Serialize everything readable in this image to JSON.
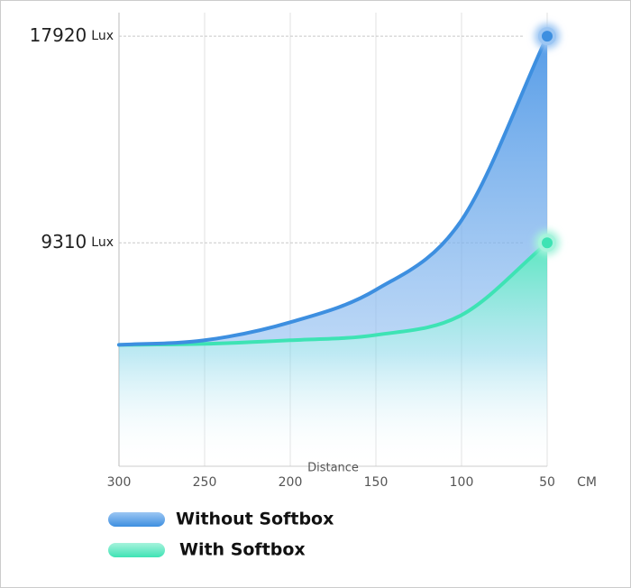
{
  "chart_data": {
    "type": "area",
    "x": [
      300,
      250,
      200,
      150,
      100,
      50
    ],
    "xlim": [
      300,
      50
    ],
    "xticks": [
      300,
      250,
      200,
      150,
      100,
      50
    ],
    "x_label": "Distance",
    "x_unit": "CM",
    "ylim": [
      0,
      18900
    ],
    "yticks": [
      {
        "value": 9310,
        "label": "9310"
      },
      {
        "value": 17920,
        "label": "17920"
      }
    ],
    "y_unit": "Lux",
    "grid": true,
    "series": [
      {
        "name": "Without Softbox",
        "color": "#3d8fe0",
        "values": [
          5060,
          5250,
          6000,
          7350,
          10250,
          17920
        ]
      },
      {
        "name": "With Softbox",
        "color": "#3ee3b4",
        "values": [
          5060,
          5100,
          5250,
          5470,
          6300,
          9310
        ]
      }
    ],
    "legend": "bottom-left"
  }
}
